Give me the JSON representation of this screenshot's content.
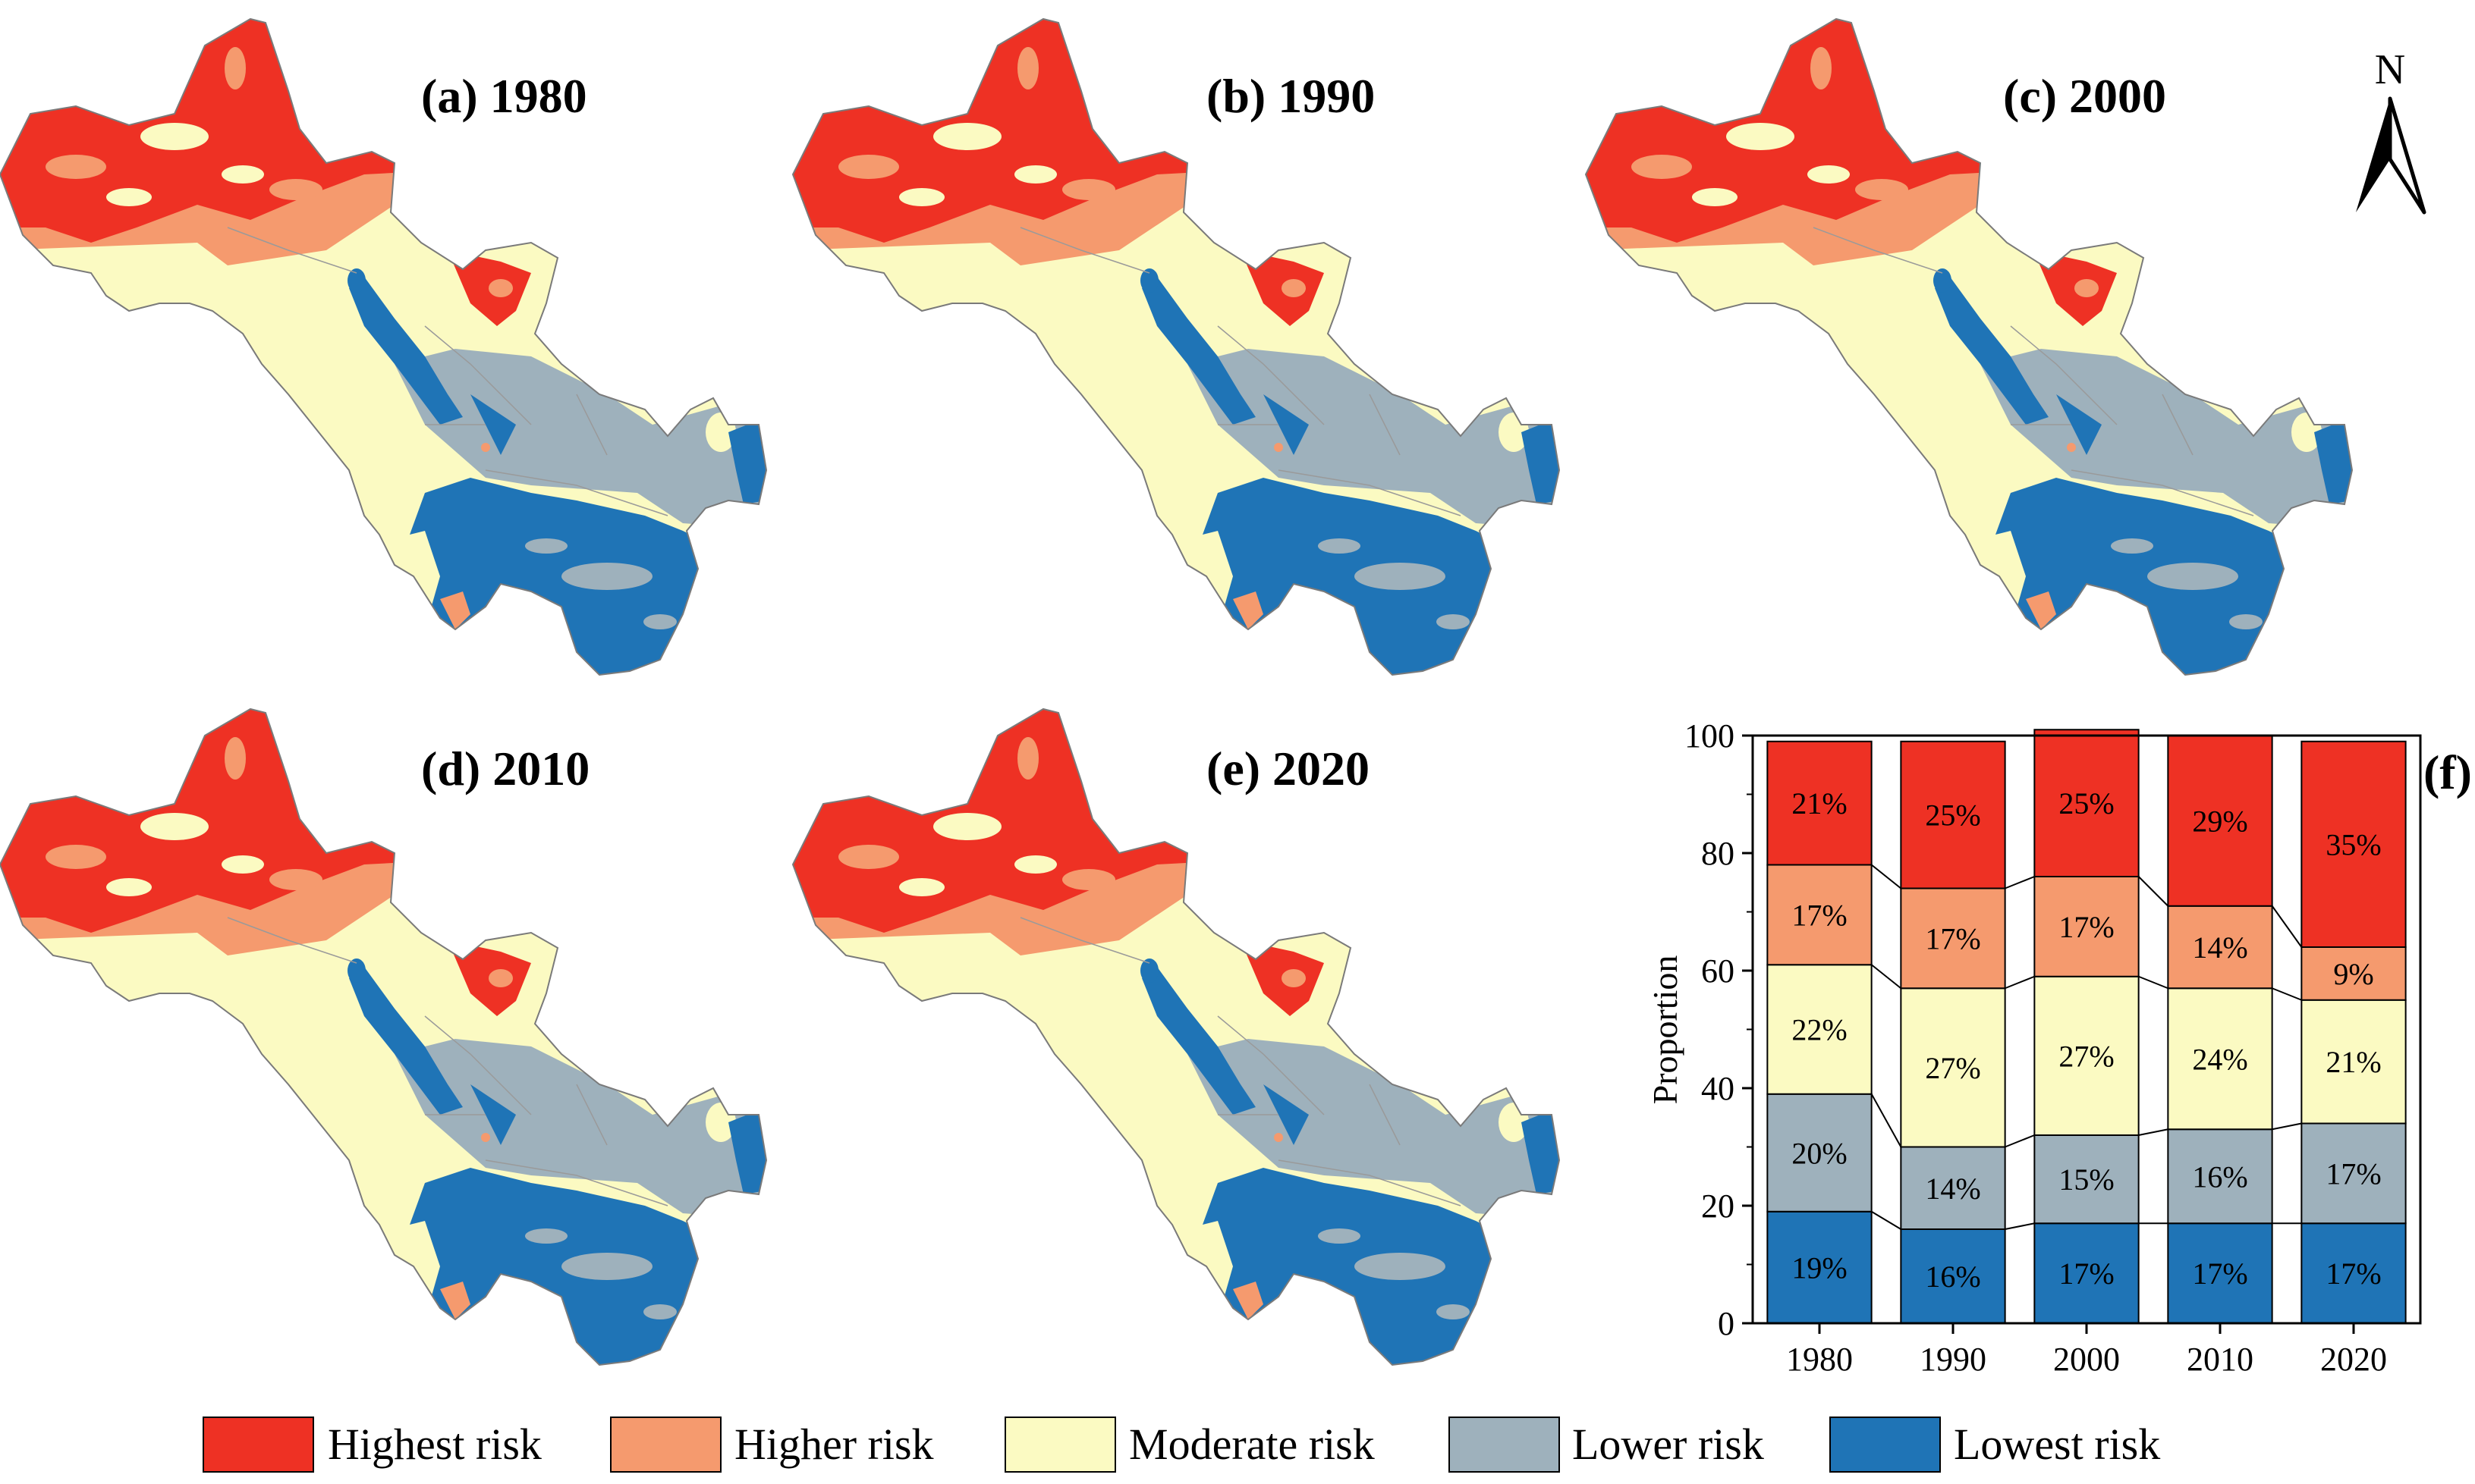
{
  "panels": [
    {
      "label": "(a) 1980",
      "year": "1980"
    },
    {
      "label": "(b) 1990",
      "year": "1990"
    },
    {
      "label": "(c) 2000",
      "year": "2000"
    },
    {
      "label": "(d) 2010",
      "year": "2010"
    },
    {
      "label": "(e) 2020",
      "year": "2020"
    }
  ],
  "north_label": "N",
  "risk_classes": [
    {
      "name": "Highest risk",
      "color": "#EE3124"
    },
    {
      "name": "Higher risk",
      "color": "#F59A6E"
    },
    {
      "name": "Moderate risk",
      "color": "#FBFAC2"
    },
    {
      "name": "Lower risk",
      "color": "#9EB1BC"
    },
    {
      "name": "Lowest risk",
      "color": "#1F74B6"
    }
  ],
  "chart_data": {
    "type": "bar",
    "stacked": true,
    "panel_label": "(f)",
    "categories": [
      "1980",
      "1990",
      "2000",
      "2010",
      "2020"
    ],
    "series": [
      {
        "name": "Lowest risk",
        "color": "#1F74B6",
        "values": [
          19,
          16,
          17,
          17,
          17
        ],
        "labels": [
          "19%",
          "16%",
          "17%",
          "17%",
          "17%"
        ]
      },
      {
        "name": "Lower risk",
        "color": "#9EB1BC",
        "values": [
          20,
          14,
          15,
          16,
          17
        ],
        "labels": [
          "20%",
          "14%",
          "15%",
          "16%",
          "17%"
        ]
      },
      {
        "name": "Moderate risk",
        "color": "#FBFAC2",
        "values": [
          22,
          27,
          27,
          24,
          21
        ],
        "labels": [
          "22%",
          "27%",
          "27%",
          "24%",
          "21%"
        ]
      },
      {
        "name": "Higher risk",
        "color": "#F59A6E",
        "values": [
          17,
          17,
          17,
          14,
          9
        ],
        "labels": [
          "17%",
          "17%",
          "17%",
          "14%",
          "9%"
        ]
      },
      {
        "name": "Highest risk",
        "color": "#EE3124",
        "values": [
          21,
          25,
          25,
          29,
          35
        ],
        "labels": [
          "21%",
          "25%",
          "25%",
          "29%",
          "35%"
        ]
      }
    ],
    "ylabel": "Proportion",
    "xlabel": "",
    "ylim": [
      0,
      100
    ],
    "yticks": [
      "0",
      "20",
      "40",
      "60",
      "80",
      "100"
    ]
  }
}
